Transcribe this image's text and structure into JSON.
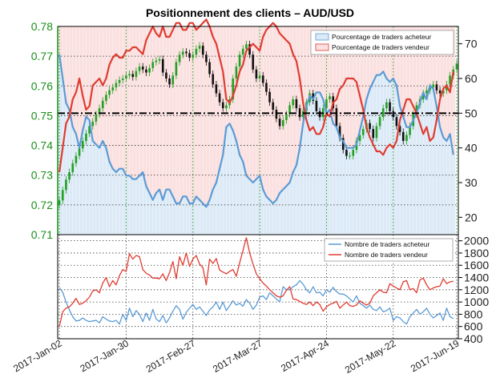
{
  "colors": {
    "buyer": "#5b9bd5",
    "seller": "#e03c31",
    "buyer_fill": "#dceaf7",
    "seller_fill": "#fbe0e0",
    "candle_up": "#22a022",
    "candle_down": "#111111",
    "price_axis": "#1a8f1a"
  },
  "chart_data": [
    {
      "type": "candlestick+area",
      "title": "Positionnement des clients – AUD/USD",
      "ylim_price": [
        0.71,
        0.78
      ],
      "price_ticks": [
        "0.71",
        "0.72",
        "0.73",
        "0.74",
        "0.75",
        "0.76",
        "0.77",
        "0.78"
      ],
      "ylim_percent": [
        15,
        75
      ],
      "percent_ticks": [
        "20",
        "30",
        "40",
        "50",
        "60",
        "70"
      ],
      "neutral_line": 50,
      "legend": [
        "Pourcentage de traders acheteur",
        "Pourcentage de traders vendeur"
      ],
      "price_close": [
        0.7215,
        0.725,
        0.7285,
        0.731,
        0.734,
        0.7365,
        0.739,
        0.7415,
        0.744,
        0.7465,
        0.748,
        0.7505,
        0.7525,
        0.755,
        0.757,
        0.7585,
        0.7595,
        0.761,
        0.762,
        0.7625,
        0.7635,
        0.764,
        0.763,
        0.765,
        0.7665,
        0.7655,
        0.7645,
        0.766,
        0.768,
        0.7685,
        0.769,
        0.7645,
        0.7625,
        0.7605,
        0.7635,
        0.768,
        0.7705,
        0.7715,
        0.771,
        0.7695,
        0.7705,
        0.7725,
        0.7735,
        0.7705,
        0.768,
        0.764,
        0.7605,
        0.7575,
        0.7545,
        0.7525,
        0.7535,
        0.7555,
        0.7625,
        0.7665,
        0.7705,
        0.7725,
        0.774,
        0.7705,
        0.7655,
        0.7625,
        0.7635,
        0.761,
        0.758,
        0.7545,
        0.752,
        0.749,
        0.7465,
        0.7485,
        0.7505,
        0.7535,
        0.7555,
        0.7525,
        0.7495,
        0.7515,
        0.7545,
        0.7575,
        0.755,
        0.7515,
        0.7495,
        0.7525,
        0.7555,
        0.7565,
        0.7525,
        0.7465,
        0.7425,
        0.7385,
        0.7365,
        0.7365,
        0.7385,
        0.7415,
        0.7435,
        0.7455,
        0.7475,
        0.7455,
        0.7425,
        0.7465,
        0.7495,
        0.7525,
        0.7545,
        0.7515,
        0.7495,
        0.7465,
        0.7445,
        0.7415,
        0.7435,
        0.7465,
        0.7505,
        0.7535,
        0.7555,
        0.7575,
        0.7585,
        0.7595,
        0.7605,
        0.7585,
        0.7575,
        0.7585,
        0.7605,
        0.7635,
        0.7655,
        0.7675
      ],
      "buyer_percent": [
        67,
        60,
        53,
        51,
        46,
        44,
        40,
        45,
        49,
        48,
        42,
        41,
        40,
        42,
        40,
        36,
        34,
        33,
        34,
        34,
        32,
        32,
        31,
        31,
        32,
        33,
        29,
        27,
        25,
        27,
        28,
        25,
        28,
        28,
        26,
        24,
        24,
        26,
        26,
        24,
        24,
        26,
        25,
        24,
        23,
        25,
        28,
        30,
        34,
        38,
        46,
        47,
        45,
        42,
        38,
        36,
        32,
        31,
        30,
        31,
        32,
        28,
        26,
        25,
        24,
        25,
        27,
        28,
        29,
        30,
        33,
        35,
        40,
        47,
        52,
        55,
        54,
        56,
        56,
        54,
        50,
        51,
        47,
        46,
        43,
        42,
        40,
        40,
        40,
        41,
        45,
        49,
        54,
        57,
        59,
        61,
        61,
        62,
        60,
        59,
        60,
        58,
        52,
        49,
        46,
        46,
        48,
        50,
        53,
        56,
        54,
        58,
        57,
        52,
        46,
        43,
        42,
        44,
        38
      ],
      "seller_percent": [
        33,
        40,
        47,
        49,
        54,
        56,
        60,
        55,
        51,
        52,
        58,
        59,
        60,
        58,
        60,
        64,
        66,
        67,
        66,
        66,
        68,
        68,
        69,
        69,
        68,
        67,
        71,
        73,
        75,
        73,
        72,
        75,
        72,
        72,
        74,
        76,
        76,
        74,
        74,
        76,
        76,
        74,
        75,
        76,
        77,
        75,
        72,
        70,
        66,
        62,
        54,
        53,
        55,
        58,
        62,
        64,
        68,
        69,
        70,
        69,
        68,
        72,
        74,
        75,
        76,
        75,
        73,
        72,
        71,
        70,
        67,
        65,
        60,
        53,
        48,
        45,
        46,
        44,
        44,
        46,
        50,
        49,
        53,
        54,
        57,
        58,
        60,
        60,
        60,
        59,
        55,
        51,
        46,
        43,
        41,
        39,
        39,
        38,
        40,
        41,
        40,
        42,
        48,
        51,
        54,
        54,
        52,
        50,
        47,
        44,
        46,
        42,
        43,
        48,
        54,
        57,
        58,
        56,
        62
      ]
    },
    {
      "type": "line",
      "ylim": [
        400,
        2100
      ],
      "ticks": [
        "400",
        "600",
        "800",
        "1000",
        "1200",
        "1400",
        "1600",
        "1800",
        "2000"
      ],
      "legend": [
        "Nombre de traders acheteur",
        "Nombre de traders vendeur"
      ],
      "series": [
        {
          "name": "Nombre de traders acheteur",
          "values": [
            1230,
            1160,
            1000,
            870,
            760,
            690,
            700,
            740,
            700,
            680,
            690,
            700,
            660,
            760,
            720,
            690,
            680,
            700,
            640,
            800,
            700,
            900,
            760,
            860,
            800,
            680,
            820,
            700,
            880,
            720,
            680,
            780,
            660,
            740,
            850,
            940,
            880,
            720,
            830,
            900,
            960,
            880,
            920,
            850,
            780,
            870,
            920,
            1000,
            880,
            1000,
            860,
            940,
            1020,
            950,
            980,
            930,
            1040,
            980,
            880,
            950,
            1080,
            1100,
            1040,
            1150,
            1100,
            1050,
            1000,
            1250,
            1200,
            1200,
            1250,
            1280,
            1350,
            1290,
            1200,
            1150,
            1250,
            1150,
            1160,
            1100,
            1200,
            1160,
            1240,
            1170,
            1130,
            1130,
            1100,
            1050,
            1000,
            1100,
            980,
            940,
            900,
            950,
            880,
            860,
            920,
            840,
            860,
            900,
            700,
            760,
            740,
            680,
            640,
            760,
            820,
            880,
            800,
            840,
            900,
            800,
            740,
            780,
            820,
            700,
            900,
            760,
            730
          ]
        },
        {
          "name": "Nombre de traders vendeur",
          "values": [
            600,
            840,
            900,
            920,
            980,
            1060,
            960,
            980,
            1020,
            1080,
            1180,
            1200,
            1150,
            1310,
            1400,
            1250,
            1350,
            1280,
            1430,
            1530,
            1500,
            1790,
            1700,
            1760,
            1740,
            1530,
            1470,
            1440,
            1390,
            1390,
            1380,
            1460,
            1350,
            1480,
            1660,
            1380,
            1740,
            1600,
            1800,
            1580,
            1700,
            1760,
            1620,
            1560,
            1280,
            1700,
            1630,
            1710,
            1520,
            1490,
            1460,
            1500,
            1530,
            1420,
            1640,
            1840,
            2050,
            1800,
            1620,
            1460,
            1380,
            1310,
            1260,
            1200,
            1150,
            1100,
            1080,
            1100,
            1190,
            1250,
            1050,
            1040,
            1010,
            980,
            960,
            1000,
            940,
            1000,
            960,
            850,
            920,
            960,
            980,
            1010,
            900,
            950,
            1000,
            940,
            930,
            950,
            1020,
            980,
            950,
            980,
            1100,
            1150,
            1200,
            1160,
            1150,
            1300,
            1260,
            1230,
            1200,
            1330,
            1350,
            1200,
            1220,
            1150,
            1360,
            1390,
            1280,
            1200,
            1230,
            1250,
            1260,
            1380,
            1300,
            1330,
            1340
          ]
        }
      ]
    }
  ],
  "x_axis": {
    "labels": [
      "2017-Jan-02",
      "2017-Jan-30",
      "2017-Feb-27",
      "2017-Mar-27",
      "2017-Apr-24",
      "2017-May-22",
      "2017-Jun-19"
    ]
  }
}
